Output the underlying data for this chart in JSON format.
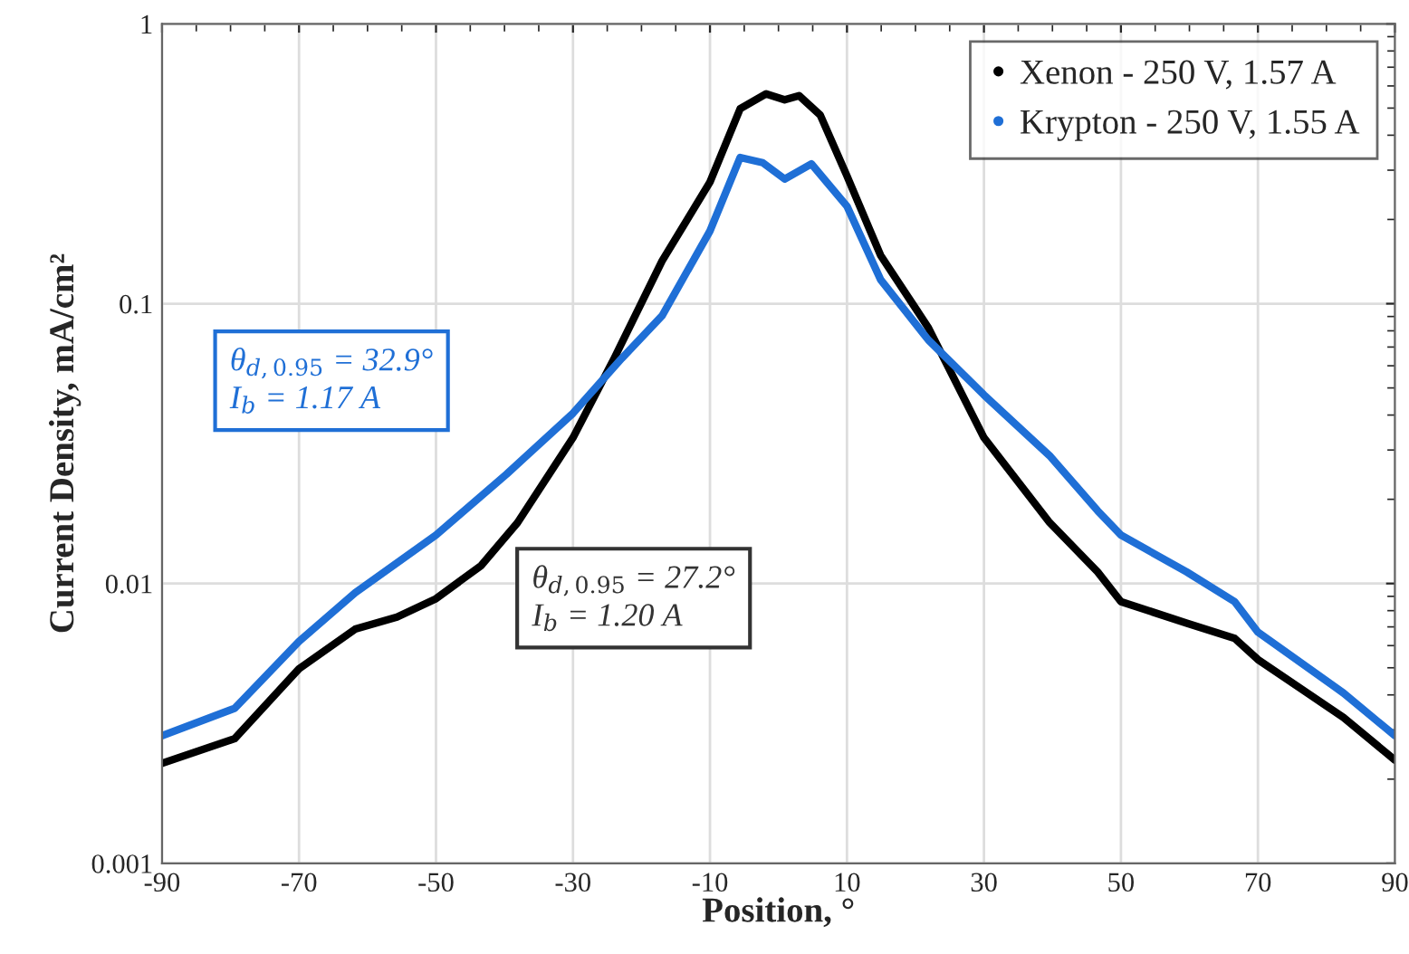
{
  "chart_data": {
    "type": "line",
    "xlabel": "Position, °",
    "ylabel": "Current Density, mA/cm²",
    "xlim": [
      -90,
      90
    ],
    "xticks": [
      -90,
      -70,
      -50,
      -30,
      -10,
      10,
      30,
      50,
      70,
      90
    ],
    "ylim": [
      0.001,
      1
    ],
    "yticks": [
      0.001,
      0.01,
      0.1,
      1
    ],
    "log": "y",
    "grid": true,
    "legend": "top right",
    "marker": "none",
    "line_style": "solid",
    "series": [
      {
        "name": "Xenon - 250 V, 1.57 A",
        "color": "#000000",
        "x": [
          -90,
          -79.4,
          -70,
          -61.8,
          -55.7,
          -50,
          -43.4,
          -38.1,
          -30,
          -24.0,
          -17,
          -10,
          -5.6,
          -1.8,
          0.9,
          3.0,
          6.1,
          10,
          14.9,
          21.9,
          30,
          39.6,
          46.6,
          50,
          59.6,
          66.6,
          70,
          82.5,
          90
        ],
        "values": [
          0.00228,
          0.00279,
          0.00496,
          0.00687,
          0.00759,
          0.00883,
          0.0116,
          0.0165,
          0.0332,
          0.0637,
          0.142,
          0.272,
          0.497,
          0.562,
          0.535,
          0.554,
          0.472,
          0.286,
          0.149,
          0.0819,
          0.0332,
          0.0165,
          0.011,
          0.00861,
          0.00722,
          0.00637,
          0.00535,
          0.00332,
          0.00234
        ]
      },
      {
        "name": "Krypton - 250 V, 1.55 A",
        "color": "#1f6fd6",
        "x": [
          -90,
          -79.4,
          -70,
          -61.8,
          -50,
          -39.7,
          -30,
          -22.9,
          -17,
          -10,
          -5.6,
          -2.3,
          0.9,
          4.8,
          10,
          14.9,
          21.9,
          30,
          39.6,
          46.6,
          50,
          59.6,
          66.6,
          70,
          82.5,
          90
        ],
        "values": [
          0.00286,
          0.00358,
          0.00621,
          0.00927,
          0.0149,
          0.0246,
          0.0406,
          0.0637,
          0.0905,
          0.182,
          0.333,
          0.319,
          0.279,
          0.316,
          0.223,
          0.122,
          0.0741,
          0.0472,
          0.0286,
          0.0182,
          0.0149,
          0.011,
          0.00861,
          0.0067,
          0.00406,
          0.00286
        ]
      }
    ],
    "annotations": [
      "θ$_{d,0.95}$ = 27.2°\nI$_{b}$ = 1.20 A",
      "θ$_{d,0.95}$ = 32.9°\nI$_{b}$ = 1.17 A"
    ]
  }
}
